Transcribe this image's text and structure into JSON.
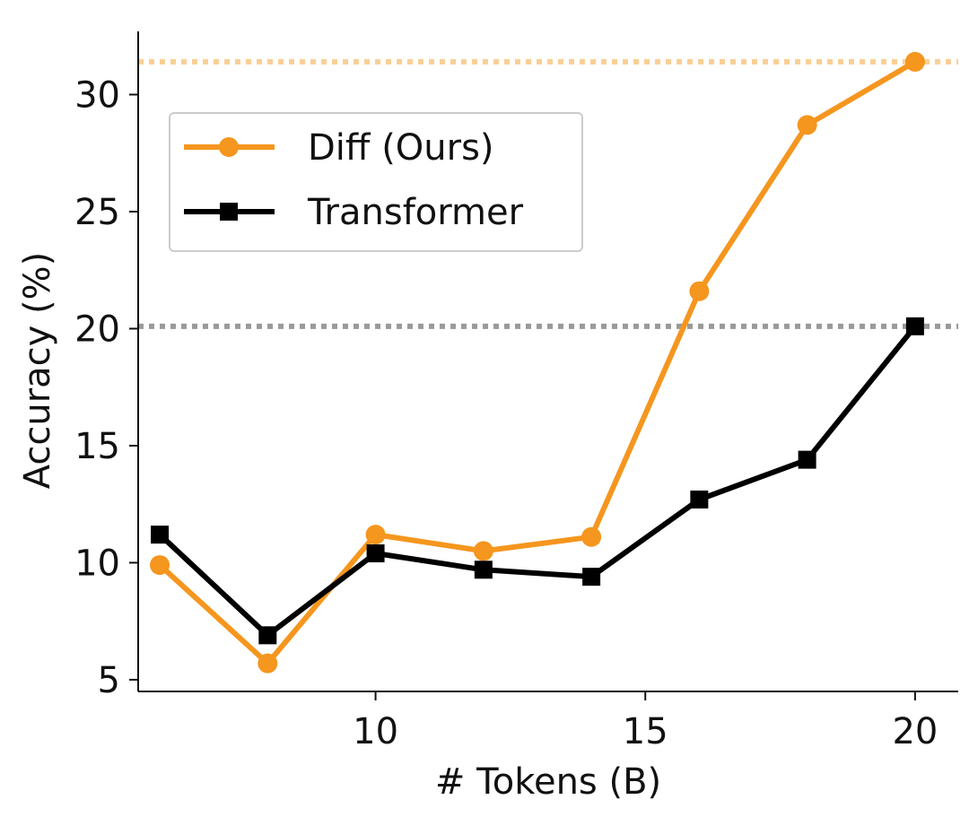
{
  "chart_data": {
    "type": "line",
    "title": "",
    "xlabel": "# Tokens (B)",
    "ylabel": "Accuracy (%)",
    "xlim": [
      5.6,
      20.8
    ],
    "ylim": [
      4.5,
      32.7
    ],
    "xticks": [
      10,
      15,
      20
    ],
    "yticks": [
      5,
      10,
      15,
      20,
      25,
      30
    ],
    "grid": false,
    "legend_position": "upper-left",
    "series": [
      {
        "name": "Diff (Ours)",
        "color": "#F5961E",
        "marker": "circle",
        "x": [
          6,
          8,
          10,
          12,
          14,
          16,
          18,
          20
        ],
        "y": [
          9.9,
          5.7,
          11.2,
          10.5,
          11.1,
          21.6,
          28.7,
          31.4
        ]
      },
      {
        "name": "Transformer",
        "color": "#000000",
        "marker": "square",
        "x": [
          6,
          8,
          10,
          12,
          14,
          16,
          18,
          20
        ],
        "y": [
          11.2,
          6.9,
          10.4,
          9.7,
          9.4,
          12.7,
          14.4,
          20.1
        ]
      }
    ],
    "reference_lines": [
      {
        "y": 31.4,
        "color": "#F9CF96",
        "style": "dotted"
      },
      {
        "y": 20.1,
        "color": "#9A9A9A",
        "style": "dotted"
      }
    ]
  }
}
